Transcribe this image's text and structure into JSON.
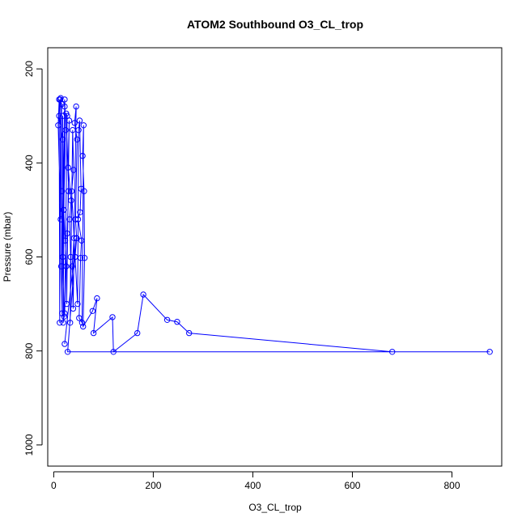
{
  "chart_data": {
    "type": "line",
    "title": "ATOM2 Southbound O3_CL_trop",
    "xlabel": "O3_CL_trop",
    "ylabel": "Pressure (mbar)",
    "xlim": [
      -12,
      900
    ],
    "ylim": [
      1045,
      155
    ],
    "y_reversed": true,
    "grid": false,
    "series_color": "#0000ff",
    "xticks": [
      0,
      200,
      400,
      600,
      800
    ],
    "yticks": [
      200,
      400,
      600,
      800,
      1000
    ],
    "series": [
      {
        "points": [
          [
            14,
            262
          ],
          [
            12,
            740
          ],
          [
            11,
            265
          ],
          [
            9,
            320
          ],
          [
            14,
            520
          ],
          [
            16,
            275
          ],
          [
            13,
            265
          ],
          [
            11,
            300
          ],
          [
            18,
            350
          ],
          [
            17,
            460
          ],
          [
            15,
            620
          ],
          [
            17,
            720
          ],
          [
            18,
            300
          ],
          [
            20,
            500
          ],
          [
            22,
            280
          ],
          [
            18,
            600
          ],
          [
            21,
            727
          ],
          [
            19,
            740
          ],
          [
            22,
            265
          ],
          [
            24,
            330
          ],
          [
            20,
            500
          ],
          [
            23,
            565
          ],
          [
            25,
            620
          ],
          [
            22,
            720
          ],
          [
            27,
            300
          ],
          [
            25,
            295
          ],
          [
            30,
            460
          ],
          [
            27,
            550
          ],
          [
            26,
            700
          ],
          [
            31,
            310
          ],
          [
            29,
            410
          ],
          [
            35,
            480
          ],
          [
            32,
            520
          ],
          [
            34,
            600
          ],
          [
            33,
            740
          ],
          [
            38,
            330
          ],
          [
            40,
            415
          ],
          [
            36,
            460
          ],
          [
            41,
            560
          ],
          [
            37,
            620
          ],
          [
            39,
            710
          ],
          [
            45,
            280
          ],
          [
            42,
            315
          ],
          [
            47,
            350
          ],
          [
            44,
            520
          ],
          [
            46,
            560
          ],
          [
            43,
            600
          ],
          [
            48,
            700
          ],
          [
            50,
            330
          ],
          [
            52,
            310
          ],
          [
            55,
            455
          ],
          [
            53,
            505
          ],
          [
            49,
            520
          ],
          [
            56,
            565
          ],
          [
            54,
            602
          ],
          [
            51,
            730
          ],
          [
            57,
            740
          ],
          [
            60,
            320
          ],
          [
            58,
            385
          ],
          [
            61,
            460
          ],
          [
            62,
            602
          ],
          [
            59,
            748
          ],
          [
            78,
            715
          ],
          [
            87,
            688
          ],
          [
            80,
            762
          ],
          [
            118,
            728
          ],
          [
            120,
            802
          ],
          [
            168,
            762
          ],
          [
            180,
            680
          ],
          [
            228,
            734
          ],
          [
            248,
            738
          ],
          [
            272,
            762
          ],
          [
            680,
            802
          ],
          [
            876,
            802
          ],
          [
            28,
            802
          ],
          [
            45,
            560
          ],
          [
            22,
            785
          ]
        ]
      }
    ]
  }
}
